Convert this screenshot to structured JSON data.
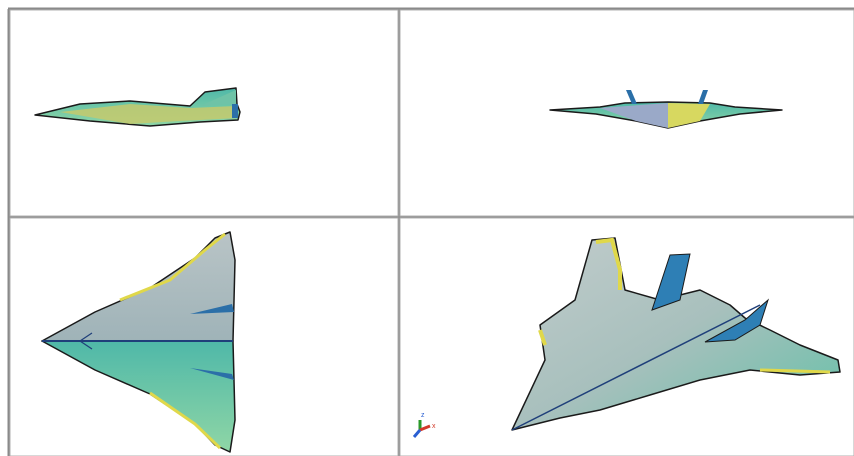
{
  "axis_icon": {
    "z_label": "z",
    "x_label": "x"
  }
}
